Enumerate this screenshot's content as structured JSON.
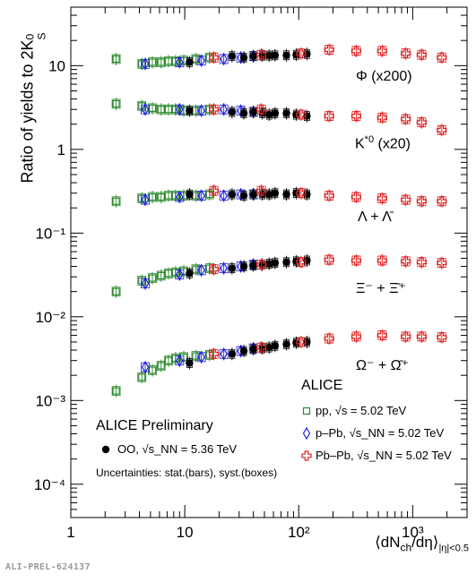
{
  "figure": {
    "y_axis_label": "Ratio of yields to 2K",
    "y_axis_label_sup": "0",
    "y_axis_label_sub": "S",
    "x_axis_label_main": "⟨dN",
    "x_axis_label_ch": "ch",
    "x_axis_label_tail": "/dη⟩",
    "x_axis_label_sub": "|η|<0.5",
    "identifier": "ALI-PREL-624137"
  },
  "species_labels": {
    "phi": "Φ (x200)",
    "kstar_main": "K",
    "kstar_sup": "*0",
    "kstar_tail": " (x20)",
    "lambda": "Λ + Λ̄",
    "xi": "Ξ⁻ + Ξ̄⁺",
    "omega": "Ω⁻ + Ω̄⁺"
  },
  "legend": {
    "experiment": "ALICE",
    "pp": "pp, √s = 5.02 TeV",
    "ppb": "p–Pb, √s_NN = 5.02 TeV",
    "pbpb": "Pb–Pb, √s_NN = 5.02 TeV",
    "preliminary": "ALICE Preliminary",
    "oo": "OO, √s_NN = 5.36 TeV",
    "uncertainties": "Uncertainties: stat.(bars), syst.(boxes)"
  },
  "colors": {
    "pp": "#2e8b2e",
    "ppb": "#2020dd",
    "pbpb": "#e02020",
    "oo": "#000000"
  },
  "chart_data": {
    "type": "scatter",
    "x_scale": "log",
    "y_scale": "log",
    "xlim": [
      1,
      3000
    ],
    "ylim": [
      4e-05,
      50
    ],
    "x_ticks": [
      1,
      10,
      100,
      1000
    ],
    "x_tick_labels": [
      "1",
      "10",
      "10²",
      "10³"
    ],
    "y_ticks": [
      0.0001,
      0.001,
      0.01,
      0.1,
      1,
      10
    ],
    "y_tick_labels": [
      "10⁻⁴",
      "10⁻³",
      "10⁻²",
      "10⁻¹",
      "1",
      "10"
    ],
    "series": [
      {
        "name": "Φ (x200) pp",
        "system": "pp",
        "x": [
          2.5,
          4.2,
          5.2,
          6.2,
          7.2,
          8.3,
          9.8,
          12.5,
          16.5
        ],
        "y": [
          12,
          10.5,
          11,
          11,
          11.3,
          11.3,
          11.5,
          12,
          12.5
        ]
      },
      {
        "name": "Φ (x200) p–Pb",
        "system": "ppb",
        "x": [
          4.5,
          9.0,
          14.0,
          22.0,
          31.0,
          40.0
        ],
        "y": [
          10.5,
          11,
          11.5,
          12,
          12.5,
          13
        ]
      },
      {
        "name": "Φ (x200) OO",
        "system": "oo",
        "x": [
          11,
          26,
          33,
          40,
          48,
          55,
          62,
          78,
          95,
          118
        ],
        "y": [
          11,
          13,
          12.5,
          13,
          13.2,
          13.2,
          13.3,
          13.3,
          13.5,
          13.8
        ]
      },
      {
        "name": "Φ (x200) Pb–Pb",
        "system": "pbpb",
        "x": [
          18,
          47,
          105,
          185,
          320,
          540,
          870,
          1200,
          1800
        ],
        "y": [
          12.5,
          13.5,
          14,
          15.5,
          15,
          15,
          14,
          13.5,
          12.5
        ]
      },
      {
        "name": "K*0 (x20) pp",
        "system": "pp",
        "x": [
          2.5,
          4.2,
          5.2,
          6.2,
          7.2,
          8.3,
          9.8,
          12.5,
          16.5
        ],
        "y": [
          3.5,
          3.3,
          3.1,
          3.0,
          3.0,
          3.0,
          2.9,
          2.9,
          3.0
        ]
      },
      {
        "name": "K*0 (x20) p–Pb",
        "system": "ppb",
        "x": [
          4.5,
          9.0,
          14.0,
          22.0,
          31.0,
          40.0
        ],
        "y": [
          3.0,
          3.0,
          2.9,
          3.0,
          2.9,
          2.8
        ]
      },
      {
        "name": "K*0 (x20) OO",
        "system": "oo",
        "x": [
          11,
          26,
          33,
          40,
          48,
          55,
          62,
          78,
          95,
          118
        ],
        "y": [
          2.9,
          2.8,
          2.7,
          2.8,
          2.7,
          2.6,
          2.7,
          2.7,
          2.6,
          2.5
        ]
      },
      {
        "name": "K*0 (x20) Pb–Pb",
        "system": "pbpb",
        "x": [
          18,
          47,
          105,
          185,
          320,
          540,
          870,
          1200,
          1800
        ],
        "y": [
          3.0,
          3.0,
          2.6,
          2.5,
          2.5,
          2.4,
          2.3,
          2.1,
          1.7
        ]
      },
      {
        "name": "Λ + Λ̄ pp",
        "system": "pp",
        "x": [
          2.5,
          4.2,
          5.2,
          6.2,
          7.2,
          8.3,
          9.8,
          12.5,
          16.5
        ],
        "y": [
          0.24,
          0.26,
          0.27,
          0.27,
          0.28,
          0.28,
          0.28,
          0.28,
          0.29
        ]
      },
      {
        "name": "Λ + Λ̄ p–Pb",
        "system": "ppb",
        "x": [
          4.5,
          9.0,
          14.0,
          22.0,
          31.0,
          40.0
        ],
        "y": [
          0.25,
          0.27,
          0.28,
          0.28,
          0.29,
          0.29
        ]
      },
      {
        "name": "Λ + Λ̄ OO",
        "system": "oo",
        "x": [
          11,
          26,
          33,
          40,
          48,
          55,
          62,
          78,
          95,
          118
        ],
        "y": [
          0.29,
          0.29,
          0.28,
          0.29,
          0.29,
          0.29,
          0.3,
          0.29,
          0.3,
          0.29
        ]
      },
      {
        "name": "Λ + Λ̄ Pb–Pb",
        "system": "pbpb",
        "x": [
          18,
          47,
          105,
          185,
          320,
          540,
          870,
          1200,
          1800
        ],
        "y": [
          0.32,
          0.32,
          0.3,
          0.28,
          0.27,
          0.26,
          0.25,
          0.24,
          0.24
        ]
      },
      {
        "name": "Ξ⁻ + Ξ̄⁺ pp",
        "system": "pp",
        "x": [
          2.5,
          4.2,
          5.2,
          6.2,
          7.2,
          8.3,
          9.8,
          12.5,
          16.5
        ],
        "y": [
          0.02,
          0.027,
          0.029,
          0.031,
          0.033,
          0.034,
          0.035,
          0.037,
          0.038
        ]
      },
      {
        "name": "Ξ⁻ + Ξ̄⁺ p–Pb",
        "system": "ppb",
        "x": [
          4.5,
          9.0,
          14.0,
          22.0,
          31.0,
          40.0
        ],
        "y": [
          0.025,
          0.032,
          0.036,
          0.038,
          0.04,
          0.042
        ]
      },
      {
        "name": "Ξ⁻ + Ξ̄⁺ OO",
        "system": "oo",
        "x": [
          11,
          26,
          33,
          40,
          48,
          55,
          62,
          78,
          95,
          118
        ],
        "y": [
          0.033,
          0.038,
          0.04,
          0.041,
          0.042,
          0.043,
          0.044,
          0.045,
          0.046,
          0.047
        ]
      },
      {
        "name": "Ξ⁻ + Ξ̄⁺ Pb–Pb",
        "system": "pbpb",
        "x": [
          18,
          47,
          105,
          185,
          320,
          540,
          870,
          1200,
          1800
        ],
        "y": [
          0.037,
          0.042,
          0.045,
          0.048,
          0.047,
          0.047,
          0.046,
          0.045,
          0.044
        ]
      },
      {
        "name": "Ω⁻ + Ω̄⁺ pp",
        "system": "pp",
        "x": [
          2.5,
          4.2,
          5.2,
          6.2,
          7.2,
          8.3,
          9.8,
          12.5,
          16.5
        ],
        "y": [
          0.0013,
          0.0019,
          0.0023,
          0.0026,
          0.003,
          0.0032,
          0.0033,
          0.0034,
          0.0035
        ]
      },
      {
        "name": "Ω⁻ + Ω̄⁺ p–Pb",
        "system": "ppb",
        "x": [
          4.5,
          9.0,
          14.0,
          22.0,
          31.0,
          40.0
        ],
        "y": [
          0.0025,
          0.003,
          0.0033,
          0.0036,
          0.0039,
          0.0042
        ]
      },
      {
        "name": "Ω⁻ + Ω̄⁺ OO",
        "system": "oo",
        "x": [
          11,
          26,
          33,
          40,
          48,
          55,
          62,
          78,
          95,
          118
        ],
        "y": [
          0.0028,
          0.0036,
          0.0039,
          0.0041,
          0.0042,
          0.0043,
          0.0045,
          0.0047,
          0.0049,
          0.005
        ]
      },
      {
        "name": "Ω⁻ + Ω̄⁺ Pb–Pb",
        "system": "pbpb",
        "x": [
          18,
          47,
          105,
          185,
          320,
          540,
          870,
          1200,
          1800
        ],
        "y": [
          0.0036,
          0.0043,
          0.005,
          0.0055,
          0.0058,
          0.006,
          0.0058,
          0.0058,
          0.0057
        ]
      }
    ]
  }
}
